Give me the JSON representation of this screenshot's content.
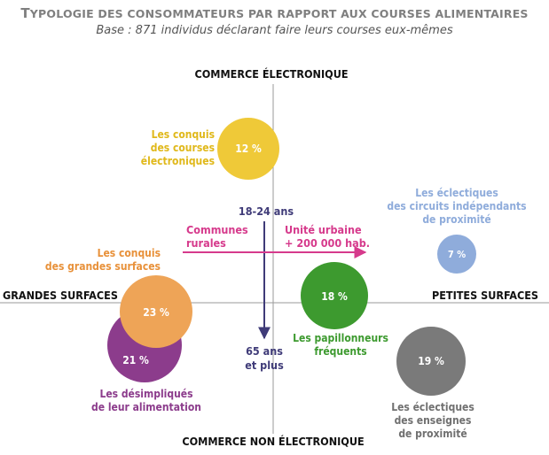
{
  "title": {
    "first": "T",
    "rest": "YPOLOGIE DES CONSOMMATEURS PAR RAPPORT AUX COURSES ALIMENTAIRES"
  },
  "subtitle": "Base : 871 individus déclarant faire leurs courses eux-mêmes",
  "axes": {
    "top": "COMMERCE ÉLECTRONIQUE",
    "bottom": "COMMERCE NON ÉLECTRONIQUE",
    "left": "GRANDES SURFACES",
    "right": "PETITES SURFACES"
  },
  "age_arrow": {
    "top": "18-24 ans",
    "bottom": [
      "65 ans",
      "et plus"
    ],
    "color": "#3f3b78"
  },
  "urban_arrow": {
    "left": [
      "Communes",
      "rurales"
    ],
    "right": [
      "Unité urbaine",
      "+ 200 000 hab."
    ],
    "color": "#d63a8c"
  },
  "segments": [
    {
      "name": [
        "Les conquis",
        "des courses",
        "électroniques"
      ],
      "percent": "12 %",
      "color": "#efc938",
      "label_color": "#e0b81a"
    },
    {
      "name": [
        "Les éclectiques",
        "des circuits indépendants",
        "de proximité"
      ],
      "percent": "7 %",
      "color": "#8facdb",
      "label_color": "#8facdb"
    },
    {
      "name": [
        "Les conquis",
        "des grandes surfaces"
      ],
      "percent": "23 %",
      "color": "#eea457",
      "label_color": "#e8913a"
    },
    {
      "name": [
        "Les désimpliqués",
        "de leur alimentation"
      ],
      "percent": "21 %",
      "color": "#8c3c8c",
      "label_color": "#8c3c8c"
    },
    {
      "name": [
        "Les papillonneurs",
        "fréquents"
      ],
      "percent": "18 %",
      "color": "#3d9a2f",
      "label_color": "#3d9a2f"
    },
    {
      "name": [
        "Les éclectiques",
        "des enseignes",
        "de proximité"
      ],
      "percent": "19 %",
      "color": "#7a7a7a",
      "label_color": "#707070"
    }
  ]
}
